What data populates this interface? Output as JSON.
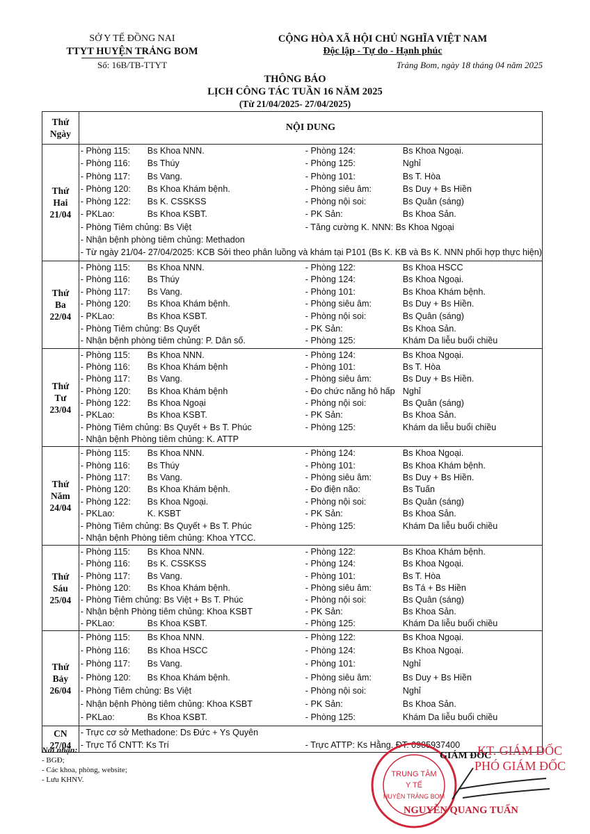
{
  "header": {
    "org1": "SỞ Y TẾ ĐỒNG NAI",
    "org2": "TTYT HUYỆN TRẢNG BOM",
    "number": "Số: 16B/TB-TTYT",
    "nation": "CỘNG HÒA XÃ HỘI CHỦ NGHĨA VIỆT NAM",
    "motto": "Độc lập - Tự do - Hạnh phúc",
    "place_date": "Trảng Bom, ngày 18 tháng 04 năm 2025"
  },
  "title": {
    "t1": "THÔNG BÁO",
    "t2": "LỊCH CÔNG TÁC TUẦN 16 NĂM 2025",
    "t3": "(Từ 21/04/2025- 27/04/2025)"
  },
  "table": {
    "col1a": "Thứ",
    "col1b": "Ngày",
    "col2": "NỘI DUNG"
  },
  "days": [
    {
      "d1": "Thứ",
      "d2": "Hai",
      "d3": "21/04",
      "lh": 18.3,
      "lines": [
        [
          "- Phòng 115:",
          "Bs Khoa NNN.",
          "- Phòng 124:",
          "Bs Khoa Ngoại."
        ],
        [
          "- Phòng 116:",
          "Bs Thúy",
          "- Phòng 125:",
          "Nghỉ"
        ],
        [
          "- Phòng 117:",
          "Bs Vang.",
          "- Phòng 101:",
          "Bs T. Hòa"
        ],
        [
          "- Phòng 120:",
          "Bs Khoa Khám bệnh.",
          "- Phòng siêu âm:",
          "Bs Duy + Bs Hiền"
        ],
        [
          "- Phòng 122:",
          "Bs K. CSSKSS",
          "- Phòng nội soi:",
          "Bs Quân (sáng)"
        ],
        [
          "- PKLao:",
          "Bs Khoa KSBT.",
          "- PK Sản:",
          "Bs Khoa Sản."
        ],
        [
          "- Phòng Tiêm chủng:  Bs Việt",
          "",
          "- Tăng cường K. NNN:  Bs Khoa Ngoại",
          ""
        ],
        [
          "- Nhận bệnh phòng tiêm chủng: Methadon"
        ],
        [
          "- Từ ngày 21/04- 27/04/2025: KCB Sởi theo phân luồng và khám tại P101 (Bs K. KB và Bs K. NNN phối hợp thực hiện)"
        ]
      ]
    },
    {
      "d1": "Thứ",
      "d2": "Ba",
      "d3": "22/04",
      "lh": 17.6,
      "lines": [
        [
          "- Phòng 115:",
          "Bs Khoa NNN.",
          "- Phòng 122:",
          "Bs Khoa HSCC"
        ],
        [
          "- Phòng 116:",
          "Bs Thúy",
          "- Phòng 124:",
          "Bs Khoa Ngoại."
        ],
        [
          "- Phòng 117:",
          "Bs Vang.",
          "- Phòng 101:",
          "Bs Khoa Khám bệnh."
        ],
        [
          "- Phòng 120:",
          "Bs Khoa Khám bệnh.",
          "- Phòng siêu âm:",
          "Bs Duy + Bs Hiền."
        ],
        [
          "- PKLao:",
          "Bs Khoa KSBT.",
          "- Phòng nội soi:",
          "Bs Quân (sáng)"
        ],
        [
          "- Phòng Tiêm chủng: Bs Quyết",
          "",
          "- PK Sản:",
          "Bs Khoa Sản."
        ],
        [
          "- Nhận bệnh phòng tiêm chủng: P. Dân số.",
          "",
          "- Phòng 125:",
          "Khám Da liễu buổi chiều"
        ]
      ]
    },
    {
      "d1": "Thứ",
      "d2": "Tư",
      "d3": "23/04",
      "lh": 17.3,
      "lines": [
        [
          "- Phòng 115:",
          "Bs Khoa NNN.",
          "- Phòng 124:",
          "Bs Khoa Ngoại."
        ],
        [
          "- Phòng 116:",
          "Bs Khoa Khám bệnh",
          "- Phòng 101:",
          "Bs T. Hòa"
        ],
        [
          "- Phòng 117:",
          "Bs Vang.",
          "- Phòng siêu âm:",
          "Bs Duy + Bs Hiền."
        ],
        [
          "- Phòng 120:",
          "Bs Khoa Khám bệnh",
          "- Đo chức năng hô hấp",
          "Nghỉ"
        ],
        [
          "- Phòng 122:",
          "Bs Khoa Ngoại",
          "- Phòng nội soi:",
          "Bs Quân (sáng)"
        ],
        [
          "- PKLao:",
          "Bs Khoa KSBT.",
          "- PK Sản:",
          "Bs Khoa Sản."
        ],
        [
          "- Phòng Tiêm chủng:  Bs Quyết + Bs T. Phúc",
          "",
          "- Phòng 125:",
          "Khám da liễu buổi chiều"
        ],
        [
          "- Nhận bệnh Phòng tiêm chủng: K. ATTP"
        ]
      ]
    },
    {
      "d1": "Thứ",
      "d2": "Năm",
      "d3": "24/04",
      "lh": 17.4,
      "lines": [
        [
          "- Phòng 115:",
          "Bs Khoa NNN.",
          "- Phòng 124:",
          "Bs Khoa Ngoại."
        ],
        [
          "- Phòng 116:",
          "Bs Thúy",
          "- Phòng 101:",
          "Bs Khoa Khám bệnh."
        ],
        [
          "- Phòng 117:",
          "Bs Vang.",
          "- Phòng siêu âm:",
          "Bs Duy + Bs Hiền."
        ],
        [
          "- Phòng 120:",
          "Bs Khoa Khám bệnh.",
          "- Đo điện não:",
          "Bs Tuấn"
        ],
        [
          "- Phòng 122:",
          "Bs Khoa Ngoại.",
          "- Phòng nội soi:",
          "Bs Quân (sáng)"
        ],
        [
          "- PKLao:",
          "K. KSBT",
          "- PK Sản:",
          "Bs Khoa Sản."
        ],
        [
          "- Phòng Tiêm chủng:  Bs Quyết + Bs T. Phúc",
          "",
          "- Phòng 125:",
          "Khám Da liễu buổi chiều"
        ],
        [
          "- Nhận bệnh Phòng tiêm chủng: Khoa YTCC."
        ]
      ]
    },
    {
      "d1": "Thứ",
      "d2": "Sáu",
      "d3": "25/04",
      "lh": 17.1,
      "lines": [
        [
          "- Phòng 115:",
          "Bs Khoa NNN.",
          "- Phòng 122:",
          "Bs Khoa Khám bệnh."
        ],
        [
          "- Phòng 116:",
          "Bs K. CSSKSS",
          "- Phòng 124:",
          "Bs Khoa Ngoại."
        ],
        [
          "- Phòng 117:",
          "Bs Vang.",
          "- Phòng 101:",
          "Bs T. Hòa"
        ],
        [
          "- Phòng 120:",
          "Bs Khoa Khám bệnh.",
          "- Phòng siêu âm:",
          "Bs Tá +  Bs Hiền"
        ],
        [
          "- Phòng Tiêm chủng: Bs Việt + Bs T. Phúc",
          "",
          "- Phòng nội soi:",
          "Bs Quân (sáng)"
        ],
        [
          "- Nhận bệnh Phòng tiêm chủng:  Khoa KSBT",
          "",
          "- PK Sản:",
          "Bs Khoa Sản."
        ],
        [
          "- PKLao:",
          "Bs Khoa KSBT.",
          "- Phòng 125:",
          "Khám Da liễu buổi chiều"
        ]
      ]
    },
    {
      "d1": "Thứ",
      "d2": "Bảy",
      "d3": "26/04",
      "lh": 19.2,
      "lines": [
        [
          "- Phòng 115:",
          "Bs Khoa NNN.",
          "- Phòng 122:",
          "Bs Khoa Ngoại."
        ],
        [
          "- Phòng 116:",
          "Bs Khoa HSCC",
          "- Phòng 124:",
          "Bs Khoa Ngoại."
        ],
        [
          "- Phòng 117:",
          "Bs Vang.",
          "- Phòng 101:",
          "Nghỉ"
        ],
        [
          "- Phòng 120:",
          "Bs Khoa Khám bệnh.",
          "- Phòng siêu âm:",
          "Bs Duy +  Bs Hiền"
        ],
        [
          "- Phòng Tiêm chủng: Bs Việt",
          "",
          "- Phòng nội soi:",
          "Nghỉ"
        ],
        [
          "- Nhận bệnh Phòng tiêm chủng:  Khoa KSBT",
          "",
          "- PK Sản:",
          "Bs Khoa Sản."
        ],
        [
          "- PKLao:",
          "Bs Khoa KSBT.",
          "- Phòng 125:",
          "Khám Da liễu buổi chiều"
        ]
      ]
    },
    {
      "d1": "CN",
      "d2": "27/04",
      "d3": "",
      "lh": 17.5,
      "lines": [
        [
          "- Trực cơ sở Methadone: Ds Đức + Ys Quyên"
        ],
        [
          "- Trực Tổ CNTT: Ks Trí",
          "",
          "- Trực ATTP: Ks Hằng. ĐT: 0985937400",
          ""
        ]
      ]
    }
  ],
  "recipients": {
    "title": "Nơi nhận:",
    "items": [
      "- BGĐ;",
      "- Các khoa, phòng, website;",
      "- Lưu KHNV."
    ]
  },
  "signature": {
    "kt": "KT. GIÁM ĐỐC",
    "pgd": "PHÓ GIÁM ĐỐC",
    "gd": "GIÁM ĐỐC",
    "name": "NGUYỄN QUANG TUẤN",
    "stamp": "TRUNG TÂM Y TẾ HUYỆN TRẢNG BOM",
    "stamp_color": "#d0263a"
  }
}
